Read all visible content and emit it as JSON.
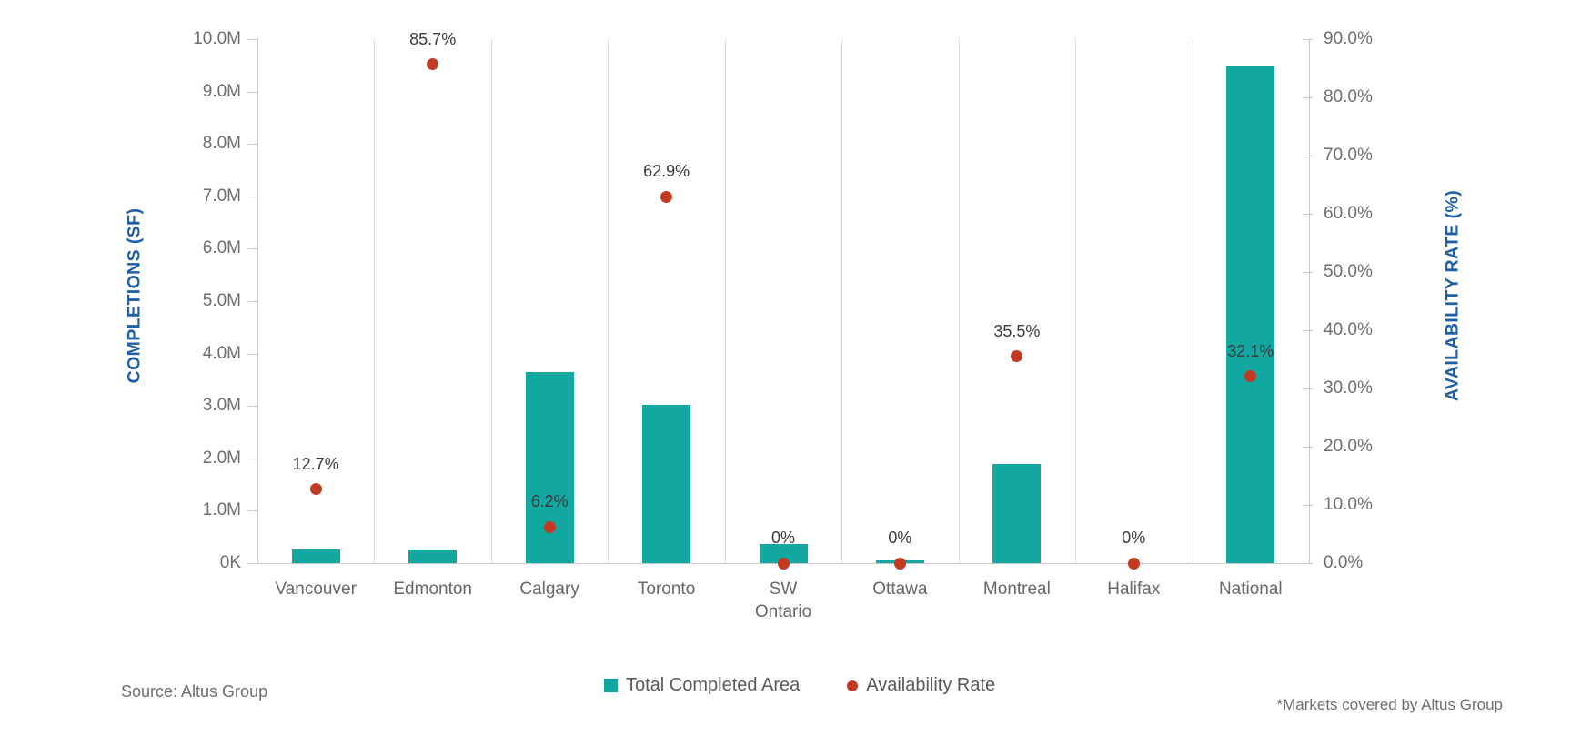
{
  "chart_data": {
    "type": "bar",
    "subtype": "dual-axis combo: bars (left axis) + scatter points (right axis)",
    "categories": [
      "Vancouver",
      "Edmonton",
      "Calgary",
      "Toronto",
      "SW Ontario",
      "Ottawa",
      "Montreal",
      "Halifax",
      "National"
    ],
    "category_display": [
      "Vancouver",
      "Edmonton",
      "Calgary",
      "Toronto",
      "SW\nOntario",
      "Ottawa",
      "Montreal",
      "Halifax",
      "National"
    ],
    "series": [
      {
        "name": "Total Completed Area",
        "type": "bar",
        "axis": "left",
        "unit": "million SF",
        "values": [
          0.26,
          0.24,
          3.65,
          3.02,
          0.36,
          0.05,
          1.89,
          0,
          9.5
        ]
      },
      {
        "name": "Availability Rate",
        "type": "scatter",
        "axis": "right",
        "unit": "%",
        "values": [
          12.7,
          85.7,
          6.2,
          62.9,
          0,
          0,
          35.5,
          0,
          32.1
        ],
        "point_labels": [
          "12.7%",
          "85.7%",
          "6.2%",
          "62.9%",
          "0%",
          "0%",
          "35.5%",
          "0%",
          "32.1%"
        ]
      }
    ],
    "left_axis": {
      "title": "COMPLETIONS (SF)",
      "min": 0,
      "max": 10,
      "ticks": [
        "0K",
        "1.0M",
        "2.0M",
        "3.0M",
        "4.0M",
        "5.0M",
        "6.0M",
        "7.0M",
        "8.0M",
        "9.0M",
        "10.0M"
      ]
    },
    "right_axis": {
      "title": "AVAILABILITY RATE (%)",
      "min": 0,
      "max": 90,
      "ticks": [
        "0.0%",
        "10.0%",
        "20.0%",
        "30.0%",
        "40.0%",
        "50.0%",
        "60.0%",
        "70.0%",
        "80.0%",
        "90.0%"
      ]
    },
    "legend": [
      {
        "label": "Total Completed Area",
        "marker": "square",
        "color": "#12A7A1"
      },
      {
        "label": "Availability Rate",
        "marker": "circle",
        "color": "#C23A22"
      }
    ],
    "grid": "vertical category separators only, no horizontal gridlines",
    "legend_position": "bottom-center",
    "colors": {
      "bar": "#12A7A1",
      "dot": "#C23A22",
      "axis_title": "#1F5FA8",
      "tick_text": "#6E6E6E",
      "category_text": "#66676A",
      "data_label": "#3B3B3B",
      "gridline": "#DBDBDB",
      "axis_line": "#C9C9C9",
      "legend_text": "#595A5C",
      "footnote_text": "#6E6E6E"
    }
  },
  "footnotes": {
    "source": "Source: Altus Group",
    "markets": "*Markets covered by Altus Group"
  }
}
